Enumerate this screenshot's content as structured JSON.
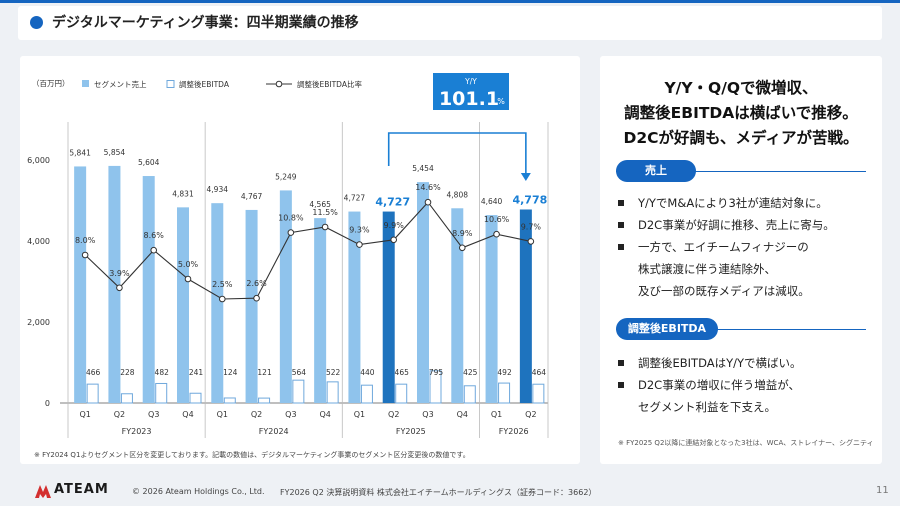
{
  "header": {
    "title": "デジタルマーケティング事業：四半期業績の推移"
  },
  "chart_data": {
    "type": "bar",
    "unit_label": "（百万円）",
    "legend": {
      "bar_solid": "セグメント売上",
      "bar_outline": "調整後EBITDA",
      "line": "調整後EBITDA比率"
    },
    "quarters": [
      "Q1",
      "Q2",
      "Q3",
      "Q4",
      "Q1",
      "Q2",
      "Q3",
      "Q4",
      "Q1",
      "Q2",
      "Q3",
      "Q4",
      "Q1",
      "Q2"
    ],
    "fiscal_years": [
      {
        "label": "FY2023",
        "count": 4
      },
      {
        "label": "FY2024",
        "count": 4
      },
      {
        "label": "FY2025",
        "count": 4
      },
      {
        "label": "FY2026",
        "count": 2
      }
    ],
    "series": [
      {
        "name": "セグメント売上",
        "values": [
          5841,
          5854,
          5604,
          4831,
          4934,
          4767,
          5249,
          4565,
          4727,
          4727,
          5454,
          4808,
          4640,
          4778
        ],
        "labels": [
          "5,841",
          "5,854",
          "5,604",
          "4,831",
          "4,934",
          "4,767",
          "5,249",
          "4,565",
          "4,727",
          "4,727",
          "5,454",
          "4,808",
          "4,640",
          "4,778"
        ]
      },
      {
        "name": "調整後EBITDA",
        "values": [
          466,
          228,
          482,
          241,
          124,
          121,
          564,
          522,
          440,
          465,
          795,
          425,
          492,
          464
        ],
        "labels": [
          "466",
          "228",
          "482",
          "241",
          "124",
          "121",
          "564",
          "522",
          "440",
          "465",
          "795",
          "425",
          "492",
          "464"
        ]
      },
      {
        "name": "調整後EBITDA比率",
        "values": [
          8.0,
          3.9,
          8.6,
          5.0,
          2.5,
          2.6,
          10.8,
          11.5,
          9.3,
          9.9,
          14.6,
          8.9,
          10.6,
          9.7
        ],
        "labels": [
          "8.0%",
          "3.9%",
          "8.6%",
          "5.0%",
          "2.5%",
          "2.6%",
          "10.8%",
          "11.5%",
          "9.3%",
          "9.9%",
          "14.6%",
          "8.9%",
          "10.6%",
          "9.7%"
        ]
      }
    ],
    "highlight_indices": [
      9,
      13
    ],
    "y_ticks": [
      0,
      2000,
      4000,
      6000
    ],
    "y_tick_labels": [
      "0",
      "2,000",
      "4,000",
      "6,000"
    ],
    "ylim": [
      0,
      7000
    ],
    "yoy_callout": {
      "label": "Y/Y",
      "value": "101.1",
      "unit": "%"
    },
    "footnote": "※ FY2024 Q1よりセグメント区分を変更しております。記載の数値は、デジタルマーケティング事業のセグメント区分変更後の数値です。",
    "colors": {
      "bar_light": "#8fc3ec",
      "bar_highlight": "#1e73be",
      "outline": "#6fa8dc",
      "line": "#333333",
      "accent": "#1a7fd4"
    }
  },
  "summary": {
    "headline": [
      "Y/Y・Q/Qで微増収、",
      "調整後EBITDAは横ばいで推移。",
      "D2Cが好調も、メディアが苦戦。"
    ],
    "sales": {
      "tag": "売上",
      "bullets": [
        [
          "Y/YでM&Aにより3社が連結対象に。"
        ],
        [
          "D2C事業が好調に推移、売上に寄与。"
        ],
        [
          "一方で、エイチームフィナジーの",
          "株式譲渡に伴う連結除外、",
          "及び一部の既存メディアは減収。"
        ]
      ]
    },
    "ebitda": {
      "tag": "調整後EBITDA",
      "bullets": [
        [
          "調整後EBITDAはY/Yで横ばい。"
        ],
        [
          "D2C事業の増収に伴う増益が、",
          "セグメント利益を下支え。"
        ]
      ]
    },
    "note": "※ FY2025 Q2以降に連結対象となった3社は、WCA、ストレイナー、シグニティ"
  },
  "footer": {
    "logo": "ATEAM",
    "copyright": "© 2026 Ateam Holdings Co., Ltd.",
    "source": "FY2026 Q2 決算説明資料 株式会社エイチームホールディングス（証券コード：3662）",
    "page": "11"
  }
}
